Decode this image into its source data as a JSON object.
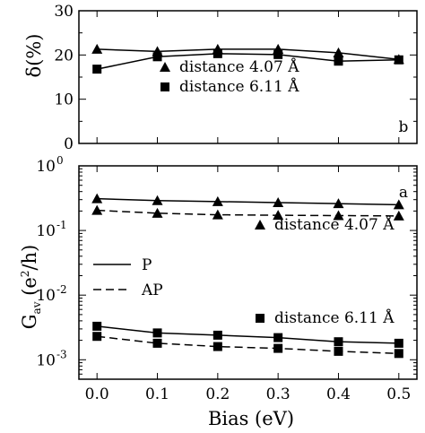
{
  "chart_data": [
    {
      "type": "line",
      "panel_label": "b",
      "xlabel": "",
      "ylabel": "δ(%)",
      "xlim": [
        -0.03,
        0.53
      ],
      "ylim": [
        0,
        30
      ],
      "xticks": [
        0.0,
        0.1,
        0.2,
        0.3,
        0.4,
        0.5
      ],
      "yticks": [
        0,
        10,
        20,
        30
      ],
      "ytick_labels": [
        "0",
        "10",
        "20",
        "30"
      ],
      "x": [
        0.0,
        0.1,
        0.2,
        0.3,
        0.4,
        0.5
      ],
      "series": [
        {
          "name": "distance 4.07 Å",
          "marker": "triangle",
          "values": [
            21.3,
            20.8,
            21.3,
            21.3,
            20.5,
            19.0
          ]
        },
        {
          "name": "distance 6.11 Å",
          "marker": "square",
          "values": [
            16.8,
            19.6,
            20.3,
            20.1,
            18.6,
            18.9
          ]
        }
      ],
      "legend": {
        "position": "center"
      }
    },
    {
      "type": "line",
      "panel_label": "a",
      "xlabel": "Bias (eV)",
      "ylabel": "G_av (e²/h)",
      "yscale": "log",
      "xlim": [
        -0.03,
        0.53
      ],
      "ylim": [
        0.0005,
        1
      ],
      "xticks": [
        0.0,
        0.1,
        0.2,
        0.3,
        0.4,
        0.5
      ],
      "xtick_labels": [
        "0.0",
        "0.1",
        "0.2",
        "0.3",
        "0.4",
        "0.5"
      ],
      "yticks": [
        0.001,
        0.01,
        0.1,
        1
      ],
      "ytick_exponents": [
        "-3",
        "-2",
        "-1",
        "0"
      ],
      "x": [
        0.0,
        0.1,
        0.2,
        0.3,
        0.4,
        0.5
      ],
      "series": [
        {
          "name": "P",
          "group": "distance 4.07 Å",
          "line": "solid",
          "marker": "triangle",
          "values": [
            0.31,
            0.29,
            0.28,
            0.27,
            0.26,
            0.25
          ]
        },
        {
          "name": "AP",
          "group": "distance 4.07 Å",
          "line": "dashed",
          "marker": "triangle",
          "values": [
            0.205,
            0.185,
            0.175,
            0.172,
            0.17,
            0.168
          ]
        },
        {
          "name": "P",
          "group": "distance 6.11 Å",
          "line": "solid",
          "marker": "square",
          "values": [
            0.0033,
            0.0026,
            0.0024,
            0.0022,
            0.0019,
            0.0018
          ]
        },
        {
          "name": "AP",
          "group": "distance 6.11 Å",
          "line": "dashed",
          "marker": "square",
          "values": [
            0.0023,
            0.0018,
            0.0016,
            0.0015,
            0.00135,
            0.00125
          ]
        }
      ],
      "legend": {
        "lines": [
          {
            "label": "P",
            "style": "solid"
          },
          {
            "label": "AP",
            "style": "dashed"
          }
        ],
        "markers": [
          {
            "label": "distance 4.07 Å",
            "marker": "triangle"
          },
          {
            "label": "distance 6.11 Å",
            "marker": "square"
          }
        ]
      }
    }
  ]
}
